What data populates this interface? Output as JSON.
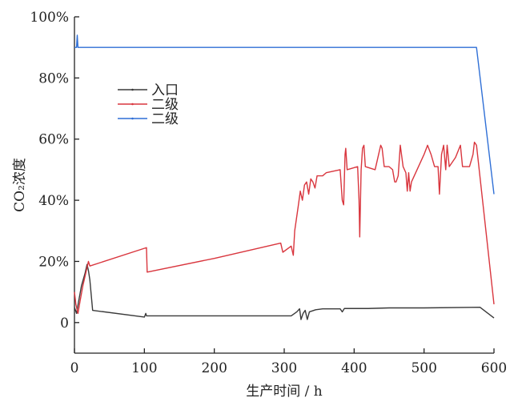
{
  "chart_data": {
    "type": "line",
    "title": "",
    "xlabel": "生产时间 / h",
    "ylabel": "CO₂浓度",
    "xlim": [
      0,
      600
    ],
    "ylim": [
      -10,
      100
    ],
    "x_ticks": [
      0,
      100,
      200,
      300,
      400,
      500,
      600
    ],
    "x_tick_labels": [
      "0",
      "100",
      "200",
      "300",
      "400",
      "500",
      "600"
    ],
    "y_ticks": [
      0,
      20,
      40,
      60,
      80,
      100
    ],
    "y_tick_labels": [
      "0",
      "20%",
      "40%",
      "60%",
      "80%",
      "100%"
    ],
    "grid": false,
    "legend_position": "upper-left",
    "series": [
      {
        "name": "入口",
        "color": "#3a3a3a",
        "points": [
          [
            0,
            5
          ],
          [
            3,
            3
          ],
          [
            6,
            7
          ],
          [
            10,
            12
          ],
          [
            15,
            16
          ],
          [
            18,
            19
          ],
          [
            20,
            17
          ],
          [
            22,
            14
          ],
          [
            26,
            4
          ],
          [
            100,
            1.8
          ],
          [
            102,
            3
          ],
          [
            103,
            2.2
          ],
          [
            200,
            2.2
          ],
          [
            310,
            2.2
          ],
          [
            318,
            3.5
          ],
          [
            322,
            4.5
          ],
          [
            324,
            1
          ],
          [
            327,
            3
          ],
          [
            330,
            4
          ],
          [
            333,
            1
          ],
          [
            336,
            3.5
          ],
          [
            345,
            4.2
          ],
          [
            355,
            4.5
          ],
          [
            380,
            4.5
          ],
          [
            383,
            3.5
          ],
          [
            386,
            4.6
          ],
          [
            420,
            4.6
          ],
          [
            450,
            4.8
          ],
          [
            500,
            4.8
          ],
          [
            580,
            5
          ],
          [
            600,
            1.5
          ]
        ]
      },
      {
        "name": "二级",
        "color": "#d9363e",
        "points": [
          [
            0,
            10
          ],
          [
            2,
            6
          ],
          [
            5,
            3
          ],
          [
            8,
            7
          ],
          [
            12,
            12
          ],
          [
            16,
            16
          ],
          [
            18,
            18
          ],
          [
            20,
            20
          ],
          [
            22,
            18.5
          ],
          [
            103,
            24.5
          ],
          [
            104,
            16.5
          ],
          [
            200,
            21
          ],
          [
            295,
            26
          ],
          [
            298,
            23
          ],
          [
            310,
            25
          ],
          [
            313,
            22
          ],
          [
            315,
            30
          ],
          [
            320,
            38
          ],
          [
            323,
            43
          ],
          [
            326,
            40
          ],
          [
            329,
            45
          ],
          [
            332,
            46
          ],
          [
            335,
            42
          ],
          [
            338,
            47
          ],
          [
            341,
            46
          ],
          [
            344,
            44
          ],
          [
            347,
            48
          ],
          [
            355,
            48
          ],
          [
            360,
            49
          ],
          [
            370,
            49.5
          ],
          [
            380,
            50
          ],
          [
            383,
            40
          ],
          [
            385,
            38.5
          ],
          [
            387,
            55
          ],
          [
            388,
            57
          ],
          [
            390,
            50
          ],
          [
            405,
            51
          ],
          [
            407,
            40
          ],
          [
            408,
            28
          ],
          [
            410,
            50
          ],
          [
            412,
            57
          ],
          [
            414,
            58
          ],
          [
            416,
            51
          ],
          [
            430,
            50
          ],
          [
            435,
            55
          ],
          [
            438,
            58
          ],
          [
            440,
            57
          ],
          [
            443,
            51
          ],
          [
            450,
            51
          ],
          [
            455,
            50
          ],
          [
            458,
            46
          ],
          [
            460,
            46
          ],
          [
            463,
            48
          ],
          [
            466,
            58
          ],
          [
            470,
            51
          ],
          [
            474,
            49
          ],
          [
            476,
            43
          ],
          [
            478,
            49
          ],
          [
            480,
            43
          ],
          [
            482,
            46
          ],
          [
            490,
            50
          ],
          [
            500,
            55
          ],
          [
            505,
            58
          ],
          [
            510,
            55
          ],
          [
            515,
            51
          ],
          [
            520,
            51
          ],
          [
            522,
            42
          ],
          [
            525,
            55
          ],
          [
            528,
            58
          ],
          [
            531,
            50
          ],
          [
            533,
            58
          ],
          [
            536,
            51
          ],
          [
            545,
            54
          ],
          [
            552,
            58
          ],
          [
            555,
            51
          ],
          [
            565,
            51
          ],
          [
            570,
            55
          ],
          [
            572,
            59
          ],
          [
            575,
            58
          ],
          [
            600,
            6
          ]
        ]
      },
      {
        "name": "二级",
        "color": "#2f6fd6",
        "points": [
          [
            0,
            90
          ],
          [
            3,
            90
          ],
          [
            4,
            94
          ],
          [
            5,
            90
          ],
          [
            100,
            90
          ],
          [
            200,
            90
          ],
          [
            300,
            90
          ],
          [
            400,
            90
          ],
          [
            500,
            90
          ],
          [
            575,
            90
          ],
          [
            600,
            42
          ]
        ]
      }
    ]
  }
}
